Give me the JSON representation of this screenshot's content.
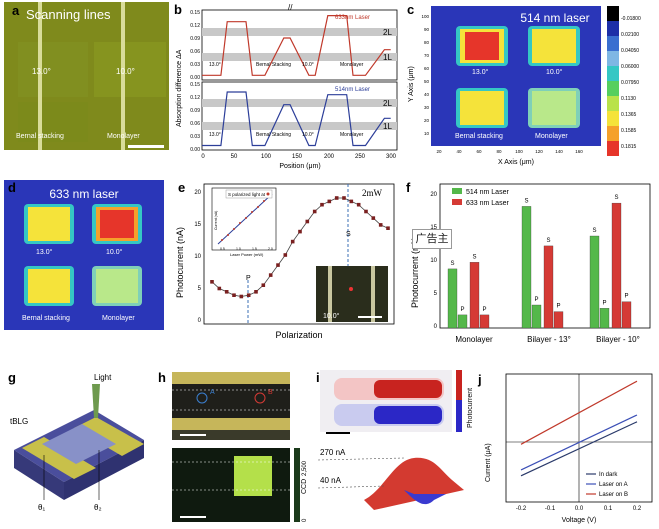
{
  "a": {
    "letter": "a",
    "title": "Scanning lines",
    "angle_left": "13.0°",
    "angle_right": "10.0°",
    "caption_left": "Bernal stacking",
    "caption_right": "Monolayer"
  },
  "b": {
    "letter": "b",
    "ylabel": "Absorption difference ΔA",
    "xlabel": "Position (μm)",
    "legend_top": "633nm Laser",
    "legend_bottom": "514nm Laser",
    "yticks": [
      "0.15",
      "0.12",
      "0.09",
      "0.06",
      "0.03",
      "0.00"
    ],
    "xticks": [
      "0",
      "50",
      "100",
      "150",
      "200",
      "250",
      "300"
    ],
    "band_2L": "2L",
    "band_1L": "1L",
    "labels_top": [
      "13.0°",
      "Bernal Stacking",
      "10.0°",
      "Monolayer"
    ],
    "labels_bottom": [
      "13.0°",
      "Bernal Stacking",
      "10.0°",
      "Monolayer"
    ]
  },
  "c": {
    "letter": "c",
    "title": "514 nm laser",
    "ylabel": "Y Axis (μm)",
    "xlabel": "X Axis (μm)",
    "yticks": [
      "100",
      "90",
      "80",
      "70",
      "60",
      "50",
      "40",
      "30",
      "20",
      "10"
    ],
    "xticks": [
      "20",
      "40",
      "60",
      "80",
      "100",
      "120",
      "140",
      "160"
    ],
    "angle_left": "13.0°",
    "angle_right": "10.0°",
    "caption_left": "Bernal stacking",
    "caption_right": "Monolayer",
    "colorbar": [
      "-0.01800",
      "0.02100",
      "0.04050",
      "0.06000",
      "0.07950",
      "0.1130",
      "0.1365",
      "0.1585",
      "0.1815"
    ],
    "colorbar_colors": [
      "#000000",
      "#1d2fa8",
      "#3a6fd0",
      "#7fb7e4",
      "#35c7c4",
      "#56cf5e",
      "#b9e24a",
      "#f5e33a",
      "#f5a12b",
      "#e6352a"
    ]
  },
  "d": {
    "letter": "d",
    "title": "633 nm laser",
    "angle_left": "13.0°",
    "angle_right": "10.0°",
    "caption_left": "Bernal stacking",
    "caption_right": "Monolayer"
  },
  "e": {
    "letter": "e",
    "ylabel": "Photocurrent (nA)",
    "xlabel": "Polarization",
    "power": "2mW",
    "p_label": "P",
    "s_label": "S",
    "yticks": [
      "20",
      "15",
      "10",
      "5",
      "0"
    ],
    "inset_legend": "S polarized light at",
    "inset_ylabel": "Current (nA)",
    "inset_xlabel": "Laser Power (mW)",
    "inset_xticks": [
      "0.5",
      "1.0",
      "1.5",
      "2.0"
    ],
    "photo_label": "10.0°"
  },
  "f": {
    "letter": "f",
    "ylabel": "Photocurrent (nA)",
    "yticks": [
      "20",
      "15",
      "10",
      "5",
      "0"
    ],
    "legend": [
      "514 nm Laser",
      "633 nm Laser"
    ],
    "categories": [
      "Monolayer",
      "Bilayer - 13°",
      "Bilayer - 10°"
    ],
    "bar_label_s": "S",
    "bar_label_p": "P"
  },
  "ad_text": "广告主",
  "g": {
    "letter": "g",
    "light": "Light",
    "tblg": "tBLG",
    "theta1": "θ₁",
    "theta2": "θ₂"
  },
  "h": {
    "letter": "h",
    "mark_a": "A",
    "mark_b": "B",
    "ccd": "CCD",
    "ccd_max": "2,500",
    "ccd_min": "0"
  },
  "i": {
    "letter": "i",
    "colorbar_label": "Photocurrent",
    "val_high": "270 nA",
    "val_low": "40 nA"
  },
  "j": {
    "letter": "j",
    "ylabel": "Current (μA)",
    "xlabel": "Voltage (V)",
    "xticks": [
      "-0.2",
      "-0.1",
      "0.0",
      "0.1",
      "0.2"
    ],
    "legend": [
      "In dark",
      "Laser on A",
      "Laser on B"
    ]
  },
  "chart_data": [
    {
      "type": "line",
      "panel": "b-top",
      "series": [
        {
          "name": "633nm Laser",
          "x": [
            0,
            30,
            40,
            70,
            80,
            100,
            130,
            140,
            170,
            180,
            200,
            230,
            240,
            260,
            290,
            300
          ],
          "y": [
            0.01,
            0.01,
            0.125,
            0.125,
            0.01,
            0.01,
            0.09,
            0.09,
            0.01,
            0.01,
            0.138,
            0.138,
            0.01,
            0.01,
            0.065,
            0.065
          ]
        }
      ],
      "xlim": [
        0,
        310
      ],
      "ylim": [
        0,
        0.15
      ],
      "xlabel": "Position (μm)",
      "ylabel": "Absorption difference ΔA"
    },
    {
      "type": "line",
      "panel": "b-bottom",
      "series": [
        {
          "name": "514nm Laser",
          "x": [
            0,
            30,
            40,
            70,
            80,
            100,
            130,
            140,
            170,
            180,
            200,
            230,
            240,
            260,
            290,
            300
          ],
          "y": [
            0.01,
            0.01,
            0.128,
            0.128,
            0.01,
            0.01,
            0.1,
            0.1,
            0.01,
            0.01,
            0.122,
            0.122,
            0.01,
            0.01,
            0.07,
            0.07
          ]
        }
      ],
      "xlim": [
        0,
        310
      ],
      "ylim": [
        0,
        0.15
      ]
    },
    {
      "type": "scatter",
      "panel": "e",
      "series": [
        {
          "name": "",
          "x": [
            0,
            10,
            20,
            30,
            40,
            50,
            60,
            70,
            80,
            90,
            100,
            110,
            120,
            130,
            140,
            150,
            160,
            170,
            180,
            190,
            200,
            210,
            220,
            230,
            240
          ],
          "y": [
            6,
            5,
            4.5,
            4,
            3.8,
            4,
            4.5,
            5.5,
            7,
            8.5,
            10,
            12,
            13.5,
            15,
            16.5,
            17.5,
            18,
            18.5,
            18.5,
            18,
            17.5,
            16.5,
            15.5,
            14.5,
            14
          ]
        }
      ],
      "xlabel": "Polarization",
      "ylabel": "Photocurrent (nA)",
      "ylim": [
        0,
        20
      ]
    },
    {
      "type": "bar",
      "panel": "f",
      "categories": [
        "Monolayer",
        "Bilayer - 13°",
        "Bilayer - 10°"
      ],
      "series": [
        {
          "name": "514 nm Laser",
          "values_S": [
            9,
            18.5,
            14
          ],
          "values_P": [
            2,
            3.5,
            3
          ]
        },
        {
          "name": "633 nm Laser",
          "values_S": [
            10,
            12.5,
            19
          ],
          "values_P": [
            2,
            2.5,
            4
          ]
        }
      ],
      "ylim": [
        0,
        22
      ]
    },
    {
      "type": "line",
      "panel": "j",
      "series": [
        {
          "name": "In dark",
          "x": [
            -0.2,
            0.2
          ],
          "y": [
            -0.75,
            0.45
          ]
        },
        {
          "name": "Laser on A",
          "x": [
            -0.2,
            0.2
          ],
          "y": [
            -0.62,
            0.6
          ]
        },
        {
          "name": "Laser on B",
          "x": [
            -0.2,
            0.2
          ],
          "y": [
            -0.05,
            1.35
          ]
        }
      ],
      "xlim": [
        -0.25,
        0.25
      ],
      "xlabel": "Voltage (V)",
      "ylabel": "Current (μA)"
    }
  ]
}
